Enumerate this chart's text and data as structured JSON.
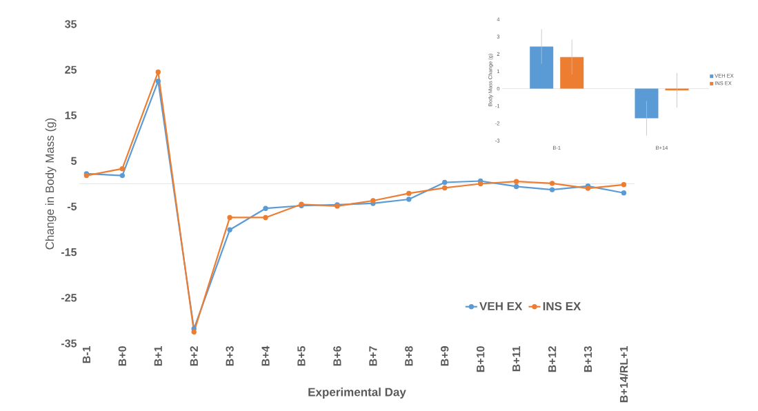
{
  "chart_data": [
    {
      "type": "line",
      "xlabel": "Experimental Day",
      "ylabel": "Change in Body Mass (g)",
      "categories": [
        "B-1",
        "B+0",
        "B+1",
        "B+2",
        "B+3",
        "B+4",
        "B+5",
        "B+6",
        "B+7",
        "B+8",
        "B+9",
        "B+10",
        "B+11",
        "B+12",
        "B+13",
        "B+14/RL+1"
      ],
      "series": [
        {
          "name": "VEH EX",
          "color": "#5b9bd5",
          "values": [
            2.2,
            1.8,
            22.5,
            -31.8,
            -10.1,
            -5.4,
            -4.8,
            -4.6,
            -4.3,
            -3.4,
            0.3,
            0.6,
            -0.6,
            -1.3,
            -0.5,
            -2.0
          ]
        },
        {
          "name": "INS EX",
          "color": "#ed7d31",
          "values": [
            1.8,
            3.3,
            24.5,
            -32.5,
            -7.4,
            -7.4,
            -4.5,
            -4.9,
            -3.7,
            -2.1,
            -0.9,
            0,
            0.5,
            0.1,
            -1.0,
            -0.2
          ]
        }
      ],
      "ylim": [
        -35,
        35
      ],
      "yticks": [
        -35,
        -25,
        -15,
        -5,
        5,
        15,
        25,
        35
      ],
      "legend": "bottom right",
      "marker": "circle",
      "line_style": "solid"
    },
    {
      "type": "bar",
      "ylabel": "Body Mass Change (g)",
      "categories": [
        "B-1",
        "B+14"
      ],
      "series": [
        {
          "name": "VEH EX",
          "color": "#5b9bd5",
          "values": [
            2.43,
            -1.71
          ],
          "errors": [
            1.0,
            1.0
          ]
        },
        {
          "name": "INS EX",
          "color": "#ed7d31",
          "values": [
            1.82,
            -0.1
          ],
          "errors": [
            1.0,
            1.0
          ]
        }
      ],
      "ylim": [
        -3,
        4
      ],
      "yticks": [
        -3,
        -2,
        -1,
        0,
        1,
        2,
        3,
        4
      ],
      "legend": "right"
    }
  ]
}
